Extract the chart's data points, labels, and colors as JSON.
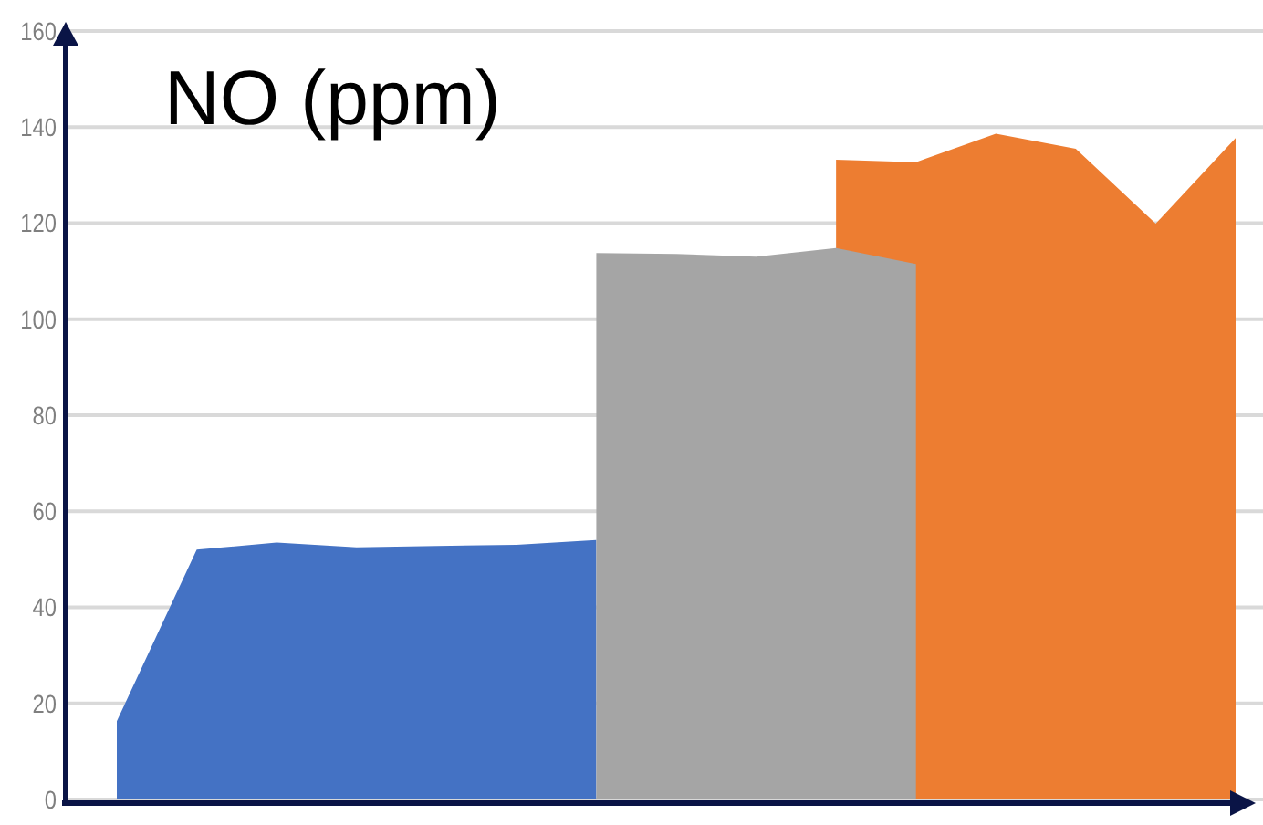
{
  "chart_data": {
    "type": "area",
    "title": "NO (ppm)",
    "categories": [
      null,
      null,
      null,
      null,
      null,
      null,
      null,
      null,
      null,
      null,
      null,
      null,
      null,
      null,
      null
    ],
    "series": [
      {
        "color": "#4472c4",
        "values": [
          16.3,
          52,
          53.5,
          52.5,
          52.8,
          53,
          54,
          null,
          null,
          null,
          null,
          null,
          null,
          null,
          null
        ]
      },
      {
        "color": "#ed7d31",
        "values": [
          null,
          null,
          null,
          null,
          null,
          null,
          null,
          null,
          null,
          133.2,
          132.7,
          138.6,
          135.5,
          119.9,
          137.7
        ]
      },
      {
        "color": "#a5a5a5",
        "values": [
          null,
          null,
          null,
          null,
          null,
          null,
          113.8,
          113.6,
          113,
          114.8,
          111.5,
          null,
          null,
          null,
          null
        ]
      }
    ],
    "ylim": [
      0,
      160
    ],
    "yticks": [
      0,
      20,
      40,
      60,
      80,
      100,
      120,
      140,
      160
    ],
    "grid": "y",
    "tick_labels": "y",
    "marker": "none"
  }
}
